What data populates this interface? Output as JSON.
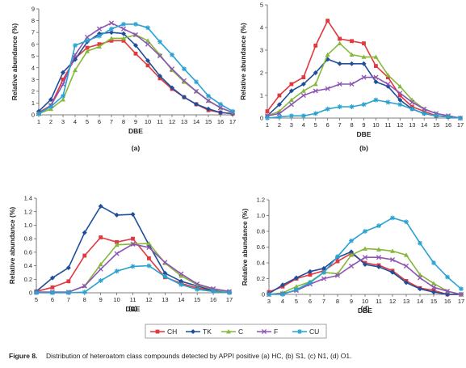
{
  "colors": {
    "CH": "#e2383f",
    "TK": "#1f4e9a",
    "C": "#86b83a",
    "F": "#8c54b5",
    "CU": "#2aa2d0"
  },
  "legend": [
    "CH",
    "TK",
    "C",
    "F",
    "CU"
  ],
  "caption": {
    "label": "Figure 8.",
    "text": "Distribution of heteroatom class compounds detected by APPI positive (a) HC, (b) S1, (c) N1, (d) O1."
  },
  "chart_data": [
    {
      "type": "line",
      "panel_label": "(a)",
      "xlabel": "DBE",
      "ylabel": "Relative abundance (%)",
      "ylim": [
        0,
        9
      ],
      "yticks": [
        "0",
        "1",
        "2",
        "3",
        "4",
        "5",
        "6",
        "7",
        "8",
        "9"
      ],
      "x": [
        1,
        2,
        3,
        4,
        5,
        6,
        7,
        8,
        9,
        10,
        11,
        12,
        13,
        14,
        15,
        16,
        17
      ],
      "series": [
        {
          "name": "CH",
          "values": [
            0.2,
            0.8,
            3.0,
            4.8,
            5.7,
            6.0,
            6.3,
            6.3,
            5.2,
            4.2,
            3.1,
            2.2,
            1.5,
            0.9,
            0.4,
            0.2,
            0.1
          ]
        },
        {
          "name": "TK",
          "values": [
            0.3,
            1.3,
            3.6,
            4.7,
            6.2,
            6.9,
            7.0,
            6.9,
            5.9,
            4.6,
            3.3,
            2.3,
            1.5,
            0.9,
            0.5,
            0.2,
            0.1
          ]
        },
        {
          "name": "C",
          "values": [
            0.1,
            0.5,
            1.3,
            3.8,
            5.4,
            5.8,
            6.5,
            6.5,
            6.8,
            6.3,
            5.1,
            3.8,
            2.8,
            2.0,
            1.2,
            0.6,
            0.2
          ]
        },
        {
          "name": "F",
          "values": [
            0.1,
            0.8,
            2.6,
            5.1,
            6.6,
            7.3,
            7.8,
            7.3,
            6.8,
            6.0,
            5.0,
            3.9,
            2.9,
            2.0,
            1.2,
            0.6,
            0.2
          ]
        },
        {
          "name": "CU",
          "values": [
            0.1,
            0.7,
            1.6,
            5.9,
            6.3,
            6.7,
            7.3,
            7.7,
            7.7,
            7.4,
            6.2,
            5.1,
            3.9,
            2.8,
            1.6,
            0.9,
            0.3
          ]
        }
      ]
    },
    {
      "type": "line",
      "panel_label": "(b)",
      "xlabel": "DBE",
      "ylabel": "Relative abundance (%)",
      "ylim": [
        0,
        5
      ],
      "yticks": [
        "0",
        "1",
        "2",
        "3",
        "4",
        "5"
      ],
      "x": [
        1,
        2,
        3,
        4,
        5,
        6,
        7,
        8,
        9,
        10,
        11,
        12,
        13,
        14,
        15,
        16,
        17
      ],
      "series": [
        {
          "name": "CH",
          "values": [
            0.3,
            1.0,
            1.5,
            1.8,
            3.2,
            4.3,
            3.5,
            3.4,
            3.3,
            2.3,
            1.8,
            1.0,
            0.5,
            0.3,
            0.1,
            0.05,
            0.0
          ]
        },
        {
          "name": "TK",
          "values": [
            0.1,
            0.6,
            1.2,
            1.5,
            2.0,
            2.6,
            2.4,
            2.4,
            2.4,
            1.6,
            1.4,
            0.8,
            0.4,
            0.2,
            0.1,
            0.05,
            0.0
          ]
        },
        {
          "name": "C",
          "values": [
            0.1,
            0.3,
            0.8,
            1.2,
            1.5,
            2.8,
            3.3,
            2.8,
            2.7,
            2.7,
            1.9,
            1.4,
            0.8,
            0.4,
            0.2,
            0.1,
            0.0
          ]
        },
        {
          "name": "F",
          "values": [
            0.1,
            0.2,
            0.6,
            1.0,
            1.2,
            1.3,
            1.5,
            1.5,
            1.8,
            1.8,
            1.5,
            1.1,
            0.7,
            0.4,
            0.2,
            0.1,
            0.0
          ]
        },
        {
          "name": "CU",
          "values": [
            0.0,
            0.05,
            0.1,
            0.1,
            0.2,
            0.4,
            0.5,
            0.5,
            0.6,
            0.8,
            0.7,
            0.6,
            0.4,
            0.2,
            0.1,
            0.05,
            0.0
          ]
        }
      ]
    },
    {
      "type": "line",
      "panel_label": "(c)",
      "xlabel": "DBE",
      "ylabel": "Relative abundance (%)",
      "ylim": [
        0,
        1.4
      ],
      "yticks": [
        "0",
        "0.2",
        "0.4",
        "0.6",
        "0.8",
        "1.0",
        "1.2",
        "1.4"
      ],
      "x": [
        5,
        6,
        7,
        8,
        9,
        10,
        11,
        12,
        13,
        14,
        15,
        16,
        17
      ],
      "series": [
        {
          "name": "CH",
          "values": [
            0.02,
            0.08,
            0.17,
            0.55,
            0.82,
            0.75,
            0.8,
            0.51,
            0.23,
            0.14,
            0.07,
            0.03,
            0.01
          ]
        },
        {
          "name": "TK",
          "values": [
            0.02,
            0.22,
            0.37,
            0.89,
            1.28,
            1.15,
            1.16,
            0.71,
            0.29,
            0.17,
            0.1,
            0.03,
            0.01
          ]
        },
        {
          "name": "C",
          "values": [
            0.01,
            0.01,
            0.01,
            0.1,
            0.42,
            0.71,
            0.72,
            0.73,
            0.44,
            0.25,
            0.12,
            0.05,
            0.01
          ]
        },
        {
          "name": "F",
          "values": [
            0.01,
            0.01,
            0.01,
            0.1,
            0.35,
            0.58,
            0.72,
            0.67,
            0.45,
            0.28,
            0.13,
            0.06,
            0.02
          ]
        },
        {
          "name": "CU",
          "values": [
            0.0,
            0.0,
            0.0,
            0.01,
            0.18,
            0.32,
            0.39,
            0.4,
            0.24,
            0.12,
            0.05,
            0.02,
            0.0
          ]
        }
      ]
    },
    {
      "type": "line",
      "panel_label": "(d)",
      "xlabel": "DBE",
      "ylabel": "Relative abundance (%)",
      "ylim": [
        0,
        1.2
      ],
      "yticks": [
        "0",
        "0.2",
        "0.4",
        "0.6",
        "0.8",
        "1.0",
        "1.2"
      ],
      "x": [
        3,
        4,
        5,
        6,
        7,
        8,
        9,
        10,
        11,
        12,
        13,
        14,
        15,
        16,
        17
      ],
      "series": [
        {
          "name": "CH",
          "values": [
            0.03,
            0.1,
            0.2,
            0.25,
            0.3,
            0.42,
            0.52,
            0.4,
            0.37,
            0.3,
            0.17,
            0.08,
            0.05,
            0.0,
            0.0
          ]
        },
        {
          "name": "TK",
          "values": [
            0.01,
            0.12,
            0.21,
            0.29,
            0.33,
            0.47,
            0.54,
            0.38,
            0.35,
            0.28,
            0.15,
            0.07,
            0.03,
            0.0,
            0.0
          ]
        },
        {
          "name": "C",
          "values": [
            0.0,
            0.02,
            0.1,
            0.16,
            0.28,
            0.26,
            0.5,
            0.58,
            0.57,
            0.55,
            0.5,
            0.25,
            0.14,
            0.04,
            0.0
          ]
        },
        {
          "name": "F",
          "values": [
            0.0,
            0.01,
            0.05,
            0.13,
            0.2,
            0.24,
            0.36,
            0.47,
            0.47,
            0.44,
            0.36,
            0.21,
            0.09,
            0.04,
            0.0
          ]
        },
        {
          "name": "CU",
          "values": [
            0.0,
            0.0,
            0.06,
            0.15,
            0.28,
            0.48,
            0.68,
            0.8,
            0.87,
            0.97,
            0.92,
            0.65,
            0.4,
            0.22,
            0.07
          ]
        }
      ]
    }
  ]
}
